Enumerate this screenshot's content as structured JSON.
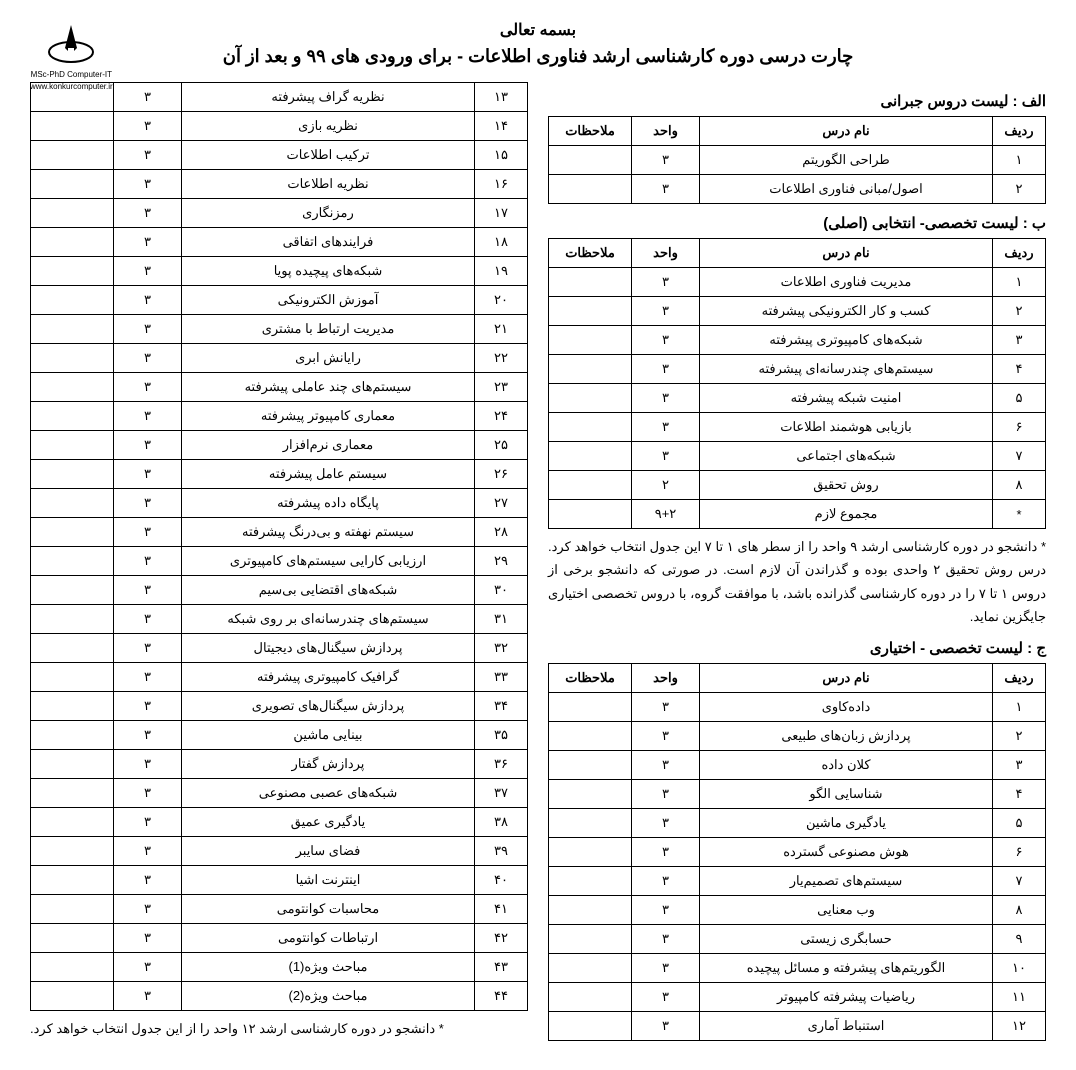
{
  "header": {
    "bismillah": "بسمه تعالی",
    "title": "چارت درسی دوره کارشناسی ارشد فناوری اطلاعات - برای ورودی های ۹۹ و بعد از آن",
    "logo_line1": "MSc-PhD Computer-IT",
    "logo_line2": "www.konkurcomputer.ir"
  },
  "columns": {
    "row": "ردیف",
    "name": "نام درس",
    "units": "واحد",
    "notes": "ملاحظات"
  },
  "section_a": {
    "title": "الف : لیست دروس جبرانی",
    "rows": [
      {
        "n": "۱",
        "name": "طراحی الگوریتم",
        "u": "۳",
        "m": ""
      },
      {
        "n": "۲",
        "name": "اصول/مبانی فناوری اطلاعات",
        "u": "۳",
        "m": ""
      }
    ]
  },
  "section_b": {
    "title": "ب : لیست تخصصی- انتخابی (اصلی)",
    "rows": [
      {
        "n": "۱",
        "name": "مدیریت فناوری اطلاعات",
        "u": "۳",
        "m": ""
      },
      {
        "n": "۲",
        "name": "کسب و کار الکترونیکی پیشرفته",
        "u": "۳",
        "m": ""
      },
      {
        "n": "۳",
        "name": "شبکه‌های کامپیوتری پیشرفته",
        "u": "۳",
        "m": ""
      },
      {
        "n": "۴",
        "name": "سیستم‌های چندرسانه‌ای پیشرفته",
        "u": "۳",
        "m": ""
      },
      {
        "n": "۵",
        "name": "امنیت شبکه پیشرفته",
        "u": "۳",
        "m": ""
      },
      {
        "n": "۶",
        "name": "بازیابی هوشمند اطلاعات",
        "u": "۳",
        "m": ""
      },
      {
        "n": "۷",
        "name": "شبکه‌های اجتماعی",
        "u": "۳",
        "m": ""
      },
      {
        "n": "۸",
        "name": "روش تحقیق",
        "u": "۲",
        "m": ""
      },
      {
        "n": "*",
        "name": "مجموع لازم",
        "u": "۹+۲",
        "m": ""
      }
    ],
    "note": "* دانشجو در دوره کارشناسی ارشد ۹ واحد را از سطر های ۱ تا ۷ این جدول انتخاب خواهد کرد. درس روش تحقیق ۲ واحدی بوده و گذراندن آن لازم است. در صورتی که دانشجو برخی از دروس ۱ تا ۷ را در دوره کارشناسی گذرانده باشد، با موافقت گروه، با دروس تخصصی اختیاری جایگزین نماید."
  },
  "section_c_right": {
    "title": "ج : لیست تخصصی - اختیاری",
    "rows": [
      {
        "n": "۱",
        "name": "داده‌کاوی",
        "u": "۳",
        "m": ""
      },
      {
        "n": "۲",
        "name": "پردازش زبان‌های طبیعی",
        "u": "۳",
        "m": ""
      },
      {
        "n": "۳",
        "name": "کلان داده",
        "u": "۳",
        "m": ""
      },
      {
        "n": "۴",
        "name": "شناسایی الگو",
        "u": "۳",
        "m": ""
      },
      {
        "n": "۵",
        "name": "یادگیری ماشین",
        "u": "۳",
        "m": ""
      },
      {
        "n": "۶",
        "name": "هوش مصنوعی گسترده",
        "u": "۳",
        "m": ""
      },
      {
        "n": "۷",
        "name": "سیستم‌های تصمیم‌یار",
        "u": "۳",
        "m": ""
      },
      {
        "n": "۸",
        "name": "وب معنایی",
        "u": "۳",
        "m": ""
      },
      {
        "n": "۹",
        "name": "حسابگری زیستی",
        "u": "۳",
        "m": ""
      },
      {
        "n": "۱۰",
        "name": "الگوریتم‌های پیشرفته و مسائل پیچیده",
        "u": "۳",
        "m": ""
      },
      {
        "n": "۱۱",
        "name": "ریاضیات پیشرفته کامپیوتر",
        "u": "۳",
        "m": ""
      },
      {
        "n": "۱۲",
        "name": "استنباط آماری",
        "u": "۳",
        "m": ""
      }
    ]
  },
  "section_c_left": {
    "rows": [
      {
        "n": "۱۳",
        "name": "نظریه گراف پیشرفته",
        "u": "۳",
        "m": ""
      },
      {
        "n": "۱۴",
        "name": "نظریه بازی",
        "u": "۳",
        "m": ""
      },
      {
        "n": "۱۵",
        "name": "ترکیب اطلاعات",
        "u": "۳",
        "m": ""
      },
      {
        "n": "۱۶",
        "name": "نظریه اطلاعات",
        "u": "۳",
        "m": ""
      },
      {
        "n": "۱۷",
        "name": "رمزنگاری",
        "u": "۳",
        "m": ""
      },
      {
        "n": "۱۸",
        "name": "فرایندهای اتفاقی",
        "u": "۳",
        "m": ""
      },
      {
        "n": "۱۹",
        "name": "شبکه‌های پیچیده پویا",
        "u": "۳",
        "m": ""
      },
      {
        "n": "۲۰",
        "name": "آموزش الکترونیکی",
        "u": "۳",
        "m": ""
      },
      {
        "n": "۲۱",
        "name": "مدیریت ارتباط با مشتری",
        "u": "۳",
        "m": ""
      },
      {
        "n": "۲۲",
        "name": "رایانش ابری",
        "u": "۳",
        "m": ""
      },
      {
        "n": "۲۳",
        "name": "سیستم‌های چند عاملی پیشرفته",
        "u": "۳",
        "m": ""
      },
      {
        "n": "۲۴",
        "name": "معماری کامپیوتر پیشرفته",
        "u": "۳",
        "m": ""
      },
      {
        "n": "۲۵",
        "name": "معماری نرم‌افزار",
        "u": "۳",
        "m": ""
      },
      {
        "n": "۲۶",
        "name": "سیستم عامل پیشرفته",
        "u": "۳",
        "m": ""
      },
      {
        "n": "۲۷",
        "name": "پایگاه داده پیشرفته",
        "u": "۳",
        "m": ""
      },
      {
        "n": "۲۸",
        "name": "سیستم نهفته و بی‌درنگ پیشرفته",
        "u": "۳",
        "m": ""
      },
      {
        "n": "۲۹",
        "name": "ارزیابی کارایی سیستم‌های کامپیوتری",
        "u": "۳",
        "m": ""
      },
      {
        "n": "۳۰",
        "name": "شبکه‌های اقتضایی بی‌سیم",
        "u": "۳",
        "m": ""
      },
      {
        "n": "۳۱",
        "name": "سیستم‌های چندرسانه‌ای بر روی شبکه",
        "u": "۳",
        "m": ""
      },
      {
        "n": "۳۲",
        "name": "پردازش سیگنال‌های دیجیتال",
        "u": "۳",
        "m": ""
      },
      {
        "n": "۳۳",
        "name": "گرافیک کامپیوتری پیشرفته",
        "u": "۳",
        "m": ""
      },
      {
        "n": "۳۴",
        "name": "پردازش سیگنال‌های تصویری",
        "u": "۳",
        "m": ""
      },
      {
        "n": "۳۵",
        "name": "بینایی ماشین",
        "u": "۳",
        "m": ""
      },
      {
        "n": "۳۶",
        "name": "پردازش گفتار",
        "u": "۳",
        "m": ""
      },
      {
        "n": "۳۷",
        "name": "شبکه‌های عصبی مصنوعی",
        "u": "۳",
        "m": ""
      },
      {
        "n": "۳۸",
        "name": "یادگیری عمیق",
        "u": "۳",
        "m": ""
      },
      {
        "n": "۳۹",
        "name": "فضای سایبر",
        "u": "۳",
        "m": ""
      },
      {
        "n": "۴۰",
        "name": "اینترنت اشیا",
        "u": "۳",
        "m": ""
      },
      {
        "n": "۴۱",
        "name": "محاسبات کوانتومی",
        "u": "۳",
        "m": ""
      },
      {
        "n": "۴۲",
        "name": "ارتباطات کوانتومی",
        "u": "۳",
        "m": ""
      },
      {
        "n": "۴۳",
        "name": "مباحث ویژه(1)",
        "u": "۳",
        "m": ""
      },
      {
        "n": "۴۴",
        "name": "مباحث ویژه(2)",
        "u": "۳",
        "m": ""
      }
    ],
    "note": "* دانشجو در دوره کارشناسی ارشد ۱۲ واحد را از این جدول انتخاب خواهد کرد."
  }
}
